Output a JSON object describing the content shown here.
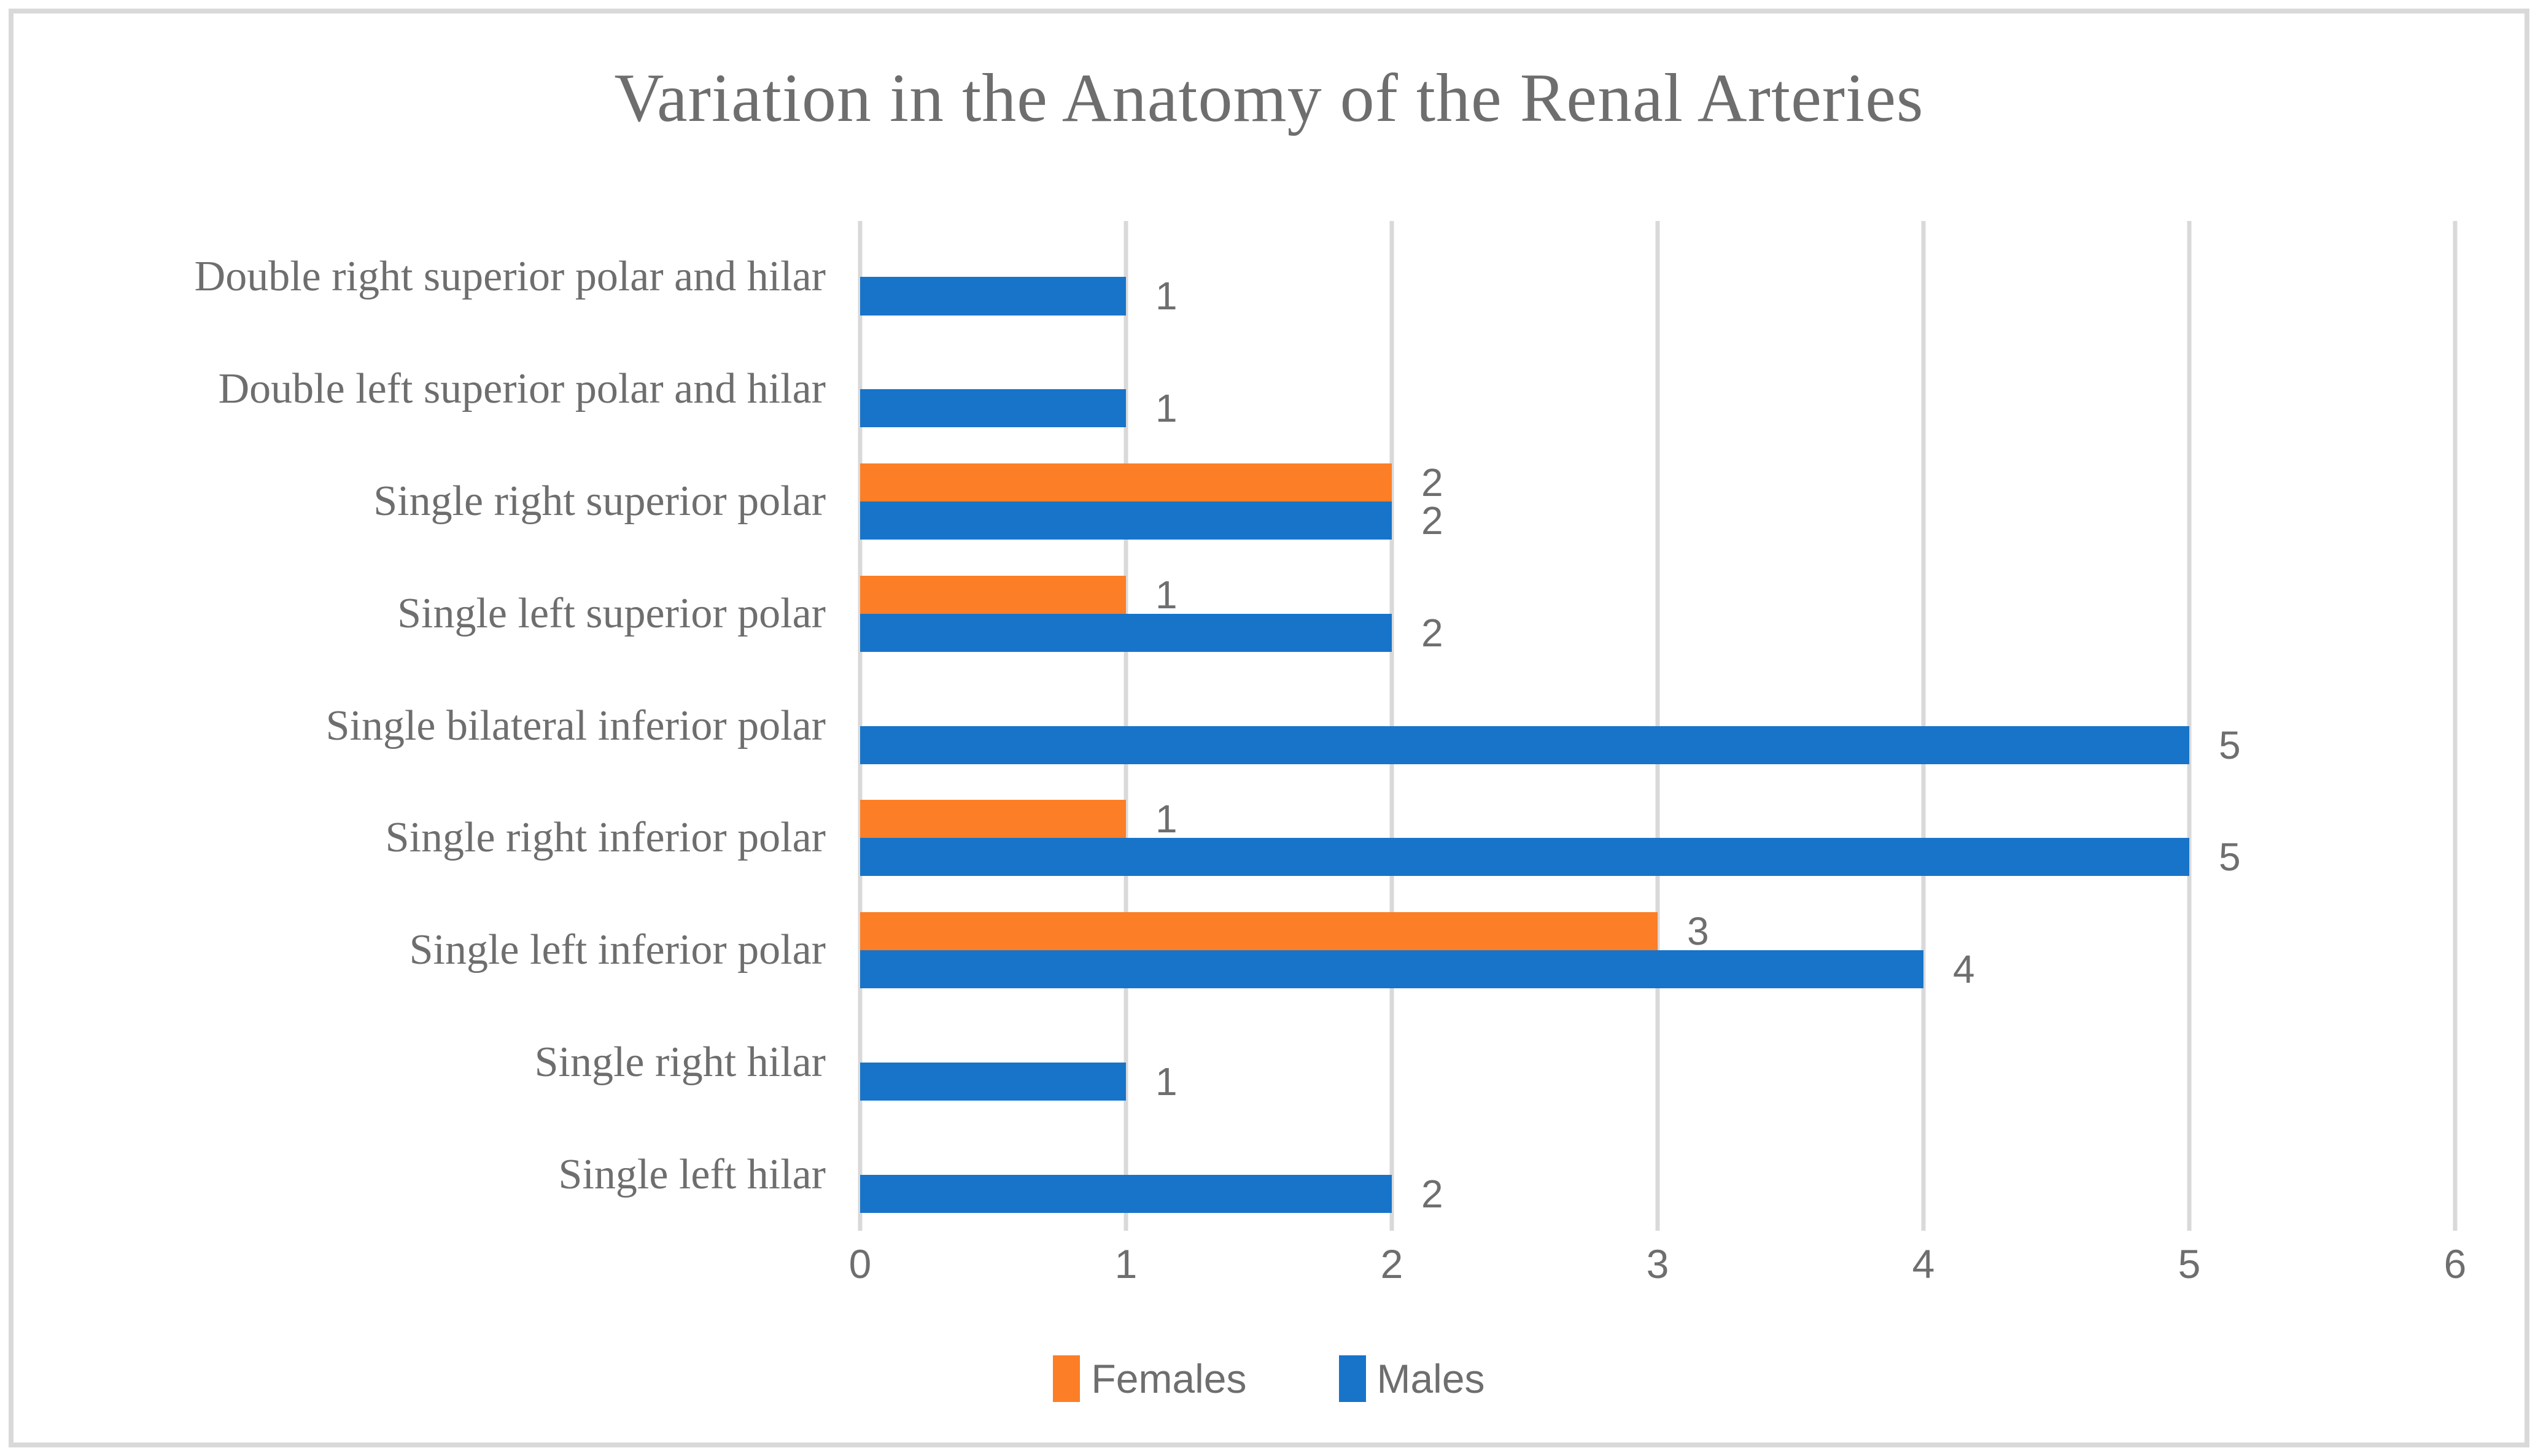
{
  "figure": {
    "background": "#FFFFFF",
    "border_color": "#D9D9D9"
  },
  "colors": {
    "grid": "#D9D9D9",
    "text": "#6E6E6E",
    "females": "#FC7E26",
    "males": "#1774C9"
  },
  "chart_data": {
    "type": "bar",
    "orientation": "horizontal",
    "title": "Variation in the Anatomy of the Renal Arteries",
    "categories": [
      "Double right superior polar and hilar",
      "Double left superior polar and hilar",
      "Single right superior polar",
      "Single left superior polar",
      "Single bilateral inferior polar",
      "Single right inferior polar",
      "Single left inferior polar",
      "Single right hilar",
      "Single left hilar"
    ],
    "series": [
      {
        "name": "Females",
        "color": "#FC7E26",
        "values": [
          null,
          null,
          2,
          1,
          null,
          1,
          3,
          null,
          null
        ]
      },
      {
        "name": "Males",
        "color": "#1774C9",
        "values": [
          1,
          1,
          2,
          2,
          5,
          5,
          4,
          1,
          2
        ]
      }
    ],
    "data_labels_shown": true,
    "xlim": [
      0,
      6
    ],
    "x_ticks": [
      0,
      1,
      2,
      3,
      4,
      5,
      6
    ],
    "grid": "vertical-only",
    "legend_position": "bottom",
    "legend_labels": [
      "Females",
      "Males"
    ]
  }
}
